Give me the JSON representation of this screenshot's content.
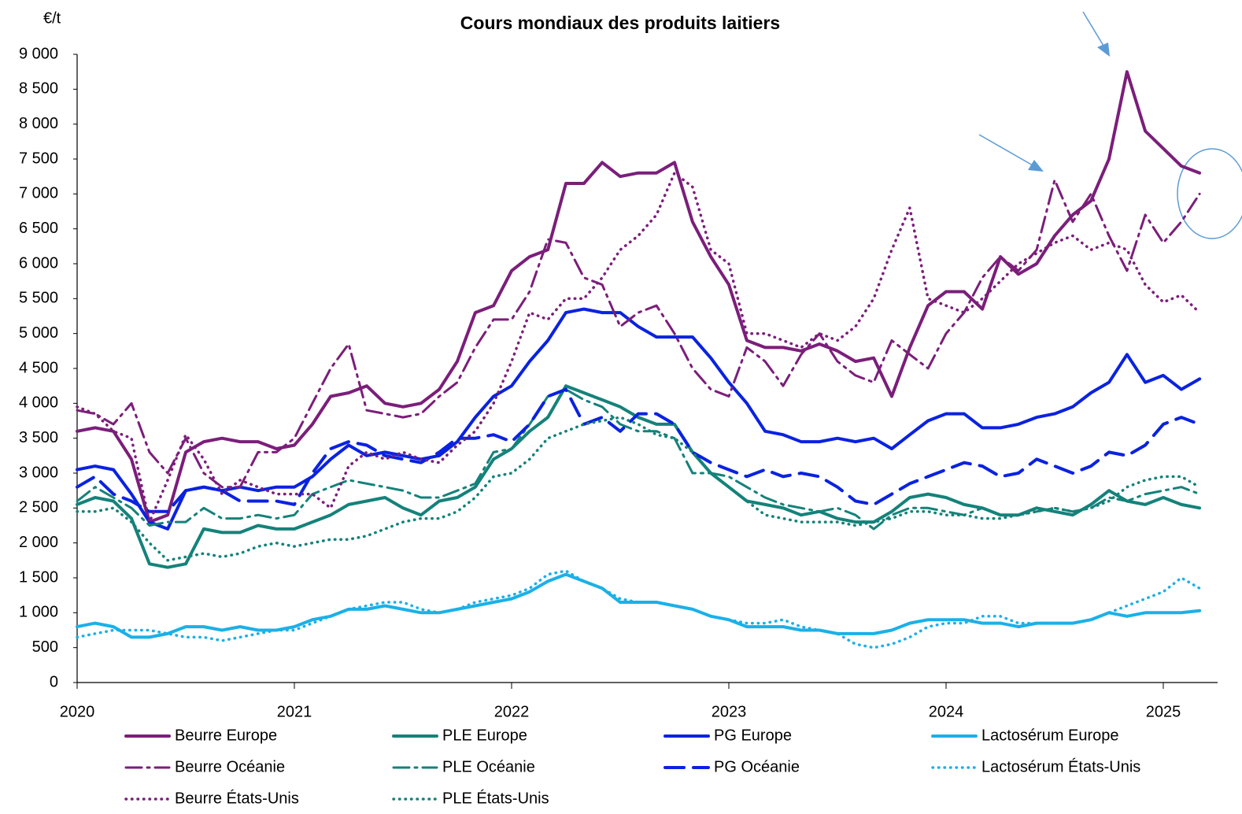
{
  "chart_data": {
    "type": "line",
    "title": "Cours mondiaux des produits laitiers",
    "y_label": "€/t",
    "xlim": [
      2020,
      2025.25
    ],
    "xticks": [
      2020,
      2021,
      2022,
      2023,
      2024,
      2025
    ],
    "ylim": [
      0,
      9000
    ],
    "yticks": [
      0,
      500,
      {
        "value": 1000,
        "label": "1 000"
      },
      {
        "value": 1500,
        "label": "1 500"
      },
      {
        "value": 2000,
        "label": "2 000"
      },
      {
        "value": 2500,
        "label": "2 500"
      },
      {
        "value": 3000,
        "label": "3 000"
      },
      {
        "value": 3500,
        "label": "3 500"
      },
      {
        "value": 4000,
        "label": "4 000"
      },
      {
        "value": 4500,
        "label": "4 500"
      },
      {
        "value": 5000,
        "label": "5 000"
      },
      {
        "value": 5500,
        "label": "5 500"
      },
      {
        "value": 6000,
        "label": "6 000"
      },
      {
        "value": 6500,
        "label": "6 500"
      },
      {
        "value": 7000,
        "label": "7 000"
      },
      {
        "value": 7500,
        "label": "7 500"
      },
      {
        "value": 8000,
        "label": "8 000"
      },
      {
        "value": 8500,
        "label": "8 500"
      },
      {
        "value": 9000,
        "label": "9 000"
      }
    ],
    "x": [
      2020,
      2020.083,
      2020.167,
      2020.25,
      2020.333,
      2020.417,
      2020.5,
      2020.583,
      2020.667,
      2020.75,
      2020.833,
      2020.917,
      2021,
      2021.083,
      2021.167,
      2021.25,
      2021.333,
      2021.417,
      2021.5,
      2021.583,
      2021.667,
      2021.75,
      2021.833,
      2021.917,
      2022,
      2022.083,
      2022.167,
      2022.25,
      2022.333,
      2022.417,
      2022.5,
      2022.583,
      2022.667,
      2022.75,
      2022.833,
      2022.917,
      2023,
      2023.083,
      2023.167,
      2023.25,
      2023.333,
      2023.417,
      2023.5,
      2023.583,
      2023.667,
      2023.75,
      2023.833,
      2023.917,
      2024,
      2024.083,
      2024.167,
      2024.25,
      2024.333,
      2024.417,
      2024.5,
      2024.583,
      2024.667,
      2024.75,
      2024.833,
      2024.917,
      2025,
      2025.083,
      2025.167
    ],
    "series": [
      {
        "name": "Beurre Europe",
        "color": "#7b1e7a",
        "style": "solid",
        "values": [
          3600,
          3650,
          3600,
          3200,
          2300,
          2400,
          3300,
          3450,
          3500,
          3450,
          3450,
          3350,
          3400,
          3700,
          4100,
          4150,
          4250,
          4000,
          3950,
          4000,
          4200,
          4600,
          5300,
          5400,
          5900,
          6100,
          6200,
          7150,
          7150,
          7450,
          7250,
          7300,
          7300,
          7450,
          6600,
          6100,
          5700,
          4900,
          4800,
          4800,
          4750,
          4850,
          4750,
          4600,
          4650,
          4100,
          4800,
          5400,
          5600,
          5600,
          5350,
          6100,
          5850,
          6000,
          6400,
          6700,
          6900,
          7500,
          8750,
          7900,
          7650,
          7400,
          7300
        ]
      },
      {
        "name": "PLE Europe",
        "color": "#14827a",
        "style": "solid",
        "values": [
          2550,
          2650,
          2600,
          2350,
          1700,
          1650,
          1700,
          2200,
          2150,
          2150,
          2250,
          2200,
          2200,
          2300,
          2400,
          2550,
          2600,
          2650,
          2500,
          2400,
          2600,
          2650,
          2800,
          3200,
          3350,
          3600,
          3800,
          4250,
          4150,
          4050,
          3950,
          3800,
          3700,
          3700,
          3300,
          3000,
          2800,
          2600,
          2550,
          2500,
          2400,
          2450,
          2350,
          2300,
          2300,
          2450,
          2650,
          2700,
          2650,
          2550,
          2500,
          2400,
          2400,
          2500,
          2450,
          2400,
          2550,
          2750,
          2600,
          2550,
          2650,
          2550,
          2500
        ]
      },
      {
        "name": "PG Europe",
        "color": "#0a22e0",
        "style": "solid",
        "values": [
          3050,
          3100,
          3050,
          2700,
          2300,
          2200,
          2750,
          2800,
          2750,
          2800,
          2750,
          2800,
          2800,
          2950,
          3200,
          3400,
          3250,
          3300,
          3250,
          3200,
          3250,
          3450,
          3800,
          4100,
          4250,
          4600,
          4900,
          5300,
          5350,
          5300,
          5300,
          5100,
          4950,
          4950,
          4950,
          4650,
          4300,
          4000,
          3600,
          3550,
          3450,
          3450,
          3500,
          3450,
          3500,
          3350,
          3550,
          3750,
          3850,
          3850,
          3650,
          3650,
          3700,
          3800,
          3850,
          3950,
          4150,
          4300,
          4700,
          4300,
          4400,
          4200,
          4350
        ]
      },
      {
        "name": "Lactosérum Europe",
        "color": "#1bb0e8",
        "style": "solid",
        "values": [
          800,
          850,
          800,
          650,
          650,
          700,
          800,
          800,
          750,
          800,
          750,
          750,
          800,
          900,
          950,
          1050,
          1050,
          1100,
          1050,
          1000,
          1000,
          1050,
          1100,
          1150,
          1200,
          1300,
          1450,
          1550,
          1450,
          1350,
          1150,
          1150,
          1150,
          1100,
          1050,
          950,
          900,
          800,
          800,
          800,
          750,
          750,
          700,
          700,
          700,
          750,
          850,
          900,
          900,
          900,
          850,
          850,
          800,
          850,
          850,
          850,
          900,
          1000,
          950,
          1000,
          1000,
          1000,
          1030
        ]
      },
      {
        "name": "Beurre Océanie",
        "color": "#7b1e7a",
        "style": "dashdot",
        "values": [
          3900,
          3850,
          3700,
          4000,
          3300,
          3000,
          3500,
          3000,
          2800,
          2800,
          3300,
          3300,
          3500,
          4000,
          4500,
          4850,
          3900,
          3850,
          3800,
          3850,
          4100,
          4300,
          4800,
          5200,
          5200,
          5600,
          6350,
          6300,
          5800,
          5700,
          5100,
          5300,
          5400,
          5000,
          4500,
          4200,
          4100,
          4800,
          4600,
          4250,
          4700,
          5000,
          4600,
          4400,
          4300,
          4900,
          4700,
          4500,
          5000,
          5300,
          5800,
          6100,
          5900,
          6200,
          7200,
          6600,
          7000,
          6400,
          5900,
          6700,
          6300,
          6600,
          7000
        ]
      },
      {
        "name": "PLE Océanie",
        "color": "#14827a",
        "style": "dashdot",
        "values": [
          2600,
          2800,
          2650,
          2500,
          2250,
          2300,
          2300,
          2500,
          2350,
          2350,
          2400,
          2350,
          2400,
          2700,
          2800,
          2900,
          2850,
          2800,
          2750,
          2650,
          2650,
          2750,
          2850,
          3300,
          3350,
          3700,
          4100,
          4200,
          4050,
          3950,
          3700,
          3600,
          3600,
          3500,
          3000,
          3000,
          2950,
          2800,
          2650,
          2550,
          2500,
          2450,
          2500,
          2400,
          2200,
          2400,
          2500,
          2500,
          2450,
          2400,
          2500,
          2400,
          2400,
          2450,
          2500,
          2450,
          2500,
          2650,
          2600,
          2700,
          2750,
          2800,
          2700
        ]
      },
      {
        "name": "PG Océanie",
        "color": "#0a22e0",
        "style": "dash",
        "values": [
          2800,
          2950,
          2700,
          2600,
          2450,
          2450,
          2750,
          2800,
          2750,
          2600,
          2600,
          2600,
          2550,
          3000,
          3350,
          3450,
          3400,
          3250,
          3200,
          3150,
          3300,
          3500,
          3500,
          3550,
          3450,
          3700,
          4100,
          4200,
          3700,
          3800,
          3600,
          3850,
          3850,
          3700,
          3300,
          3150,
          3050,
          2950,
          3050,
          2950,
          3000,
          2950,
          2800,
          2600,
          2550,
          2700,
          2850,
          2950,
          3050,
          3150,
          3100,
          2950,
          3000,
          3200,
          3100,
          3000,
          3100,
          3300,
          3250,
          3400,
          3700,
          3800,
          3700
        ]
      },
      {
        "name": "Lactosérum États-Unis",
        "color": "#1bb0e8",
        "style": "dot",
        "values": [
          650,
          700,
          750,
          750,
          750,
          700,
          650,
          650,
          600,
          650,
          700,
          750,
          750,
          850,
          950,
          1050,
          1100,
          1150,
          1150,
          1050,
          1000,
          1050,
          1150,
          1200,
          1250,
          1350,
          1550,
          1600,
          1450,
          1350,
          1200,
          1150,
          1150,
          1100,
          1050,
          950,
          900,
          850,
          850,
          900,
          800,
          750,
          700,
          550,
          500,
          550,
          650,
          800,
          850,
          850,
          950,
          950,
          850,
          850,
          850,
          850,
          900,
          1000,
          1100,
          1200,
          1300,
          1500,
          1350
        ]
      },
      {
        "name": "Beurre États-Unis",
        "color": "#7b1e7a",
        "style": "dot",
        "values": [
          3950,
          3850,
          3600,
          3500,
          2300,
          2900,
          3550,
          3200,
          2700,
          2900,
          2800,
          2700,
          2700,
          2700,
          2500,
          3100,
          3300,
          3200,
          3300,
          3200,
          3150,
          3400,
          3600,
          4000,
          4600,
          5300,
          5200,
          5500,
          5500,
          5800,
          6200,
          6400,
          6700,
          7300,
          7100,
          6200,
          6000,
          5000,
          5000,
          4900,
          4800,
          5000,
          4900,
          5100,
          5500,
          6200,
          6800,
          5500,
          5400,
          5300,
          5500,
          5750,
          6000,
          6150,
          6300,
          6400,
          6200,
          6300,
          6200,
          5700,
          5450,
          5550,
          5300
        ]
      },
      {
        "name": "PLE États-Unis",
        "color": "#14827a",
        "style": "dot",
        "values": [
          2450,
          2450,
          2500,
          2300,
          2000,
          1750,
          1800,
          1850,
          1800,
          1850,
          1950,
          2000,
          1950,
          2000,
          2050,
          2050,
          2100,
          2200,
          2300,
          2350,
          2350,
          2450,
          2650,
          2950,
          3000,
          3200,
          3500,
          3600,
          3700,
          3750,
          3800,
          3700,
          3550,
          3500,
          3300,
          3000,
          2800,
          2600,
          2400,
          2350,
          2300,
          2300,
          2300,
          2250,
          2300,
          2350,
          2450,
          2450,
          2400,
          2400,
          2350,
          2350,
          2400,
          2450,
          2500,
          2450,
          2500,
          2600,
          2800,
          2900,
          2950,
          2950,
          2800
        ]
      }
    ]
  }
}
